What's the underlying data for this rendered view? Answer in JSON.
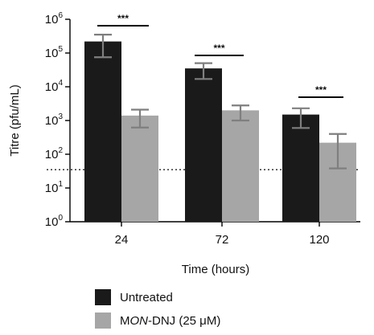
{
  "chart_data": {
    "type": "bar",
    "xlabel": "Time (hours)",
    "ylabel": "Titre (pfu/mL)",
    "categories": [
      "24",
      "72",
      "120"
    ],
    "yscale": "log10",
    "ylim": [
      1,
      1000000
    ],
    "yticks": [
      {
        "base": "10",
        "exp": "0"
      },
      {
        "base": "10",
        "exp": "1"
      },
      {
        "base": "10",
        "exp": "2"
      },
      {
        "base": "10",
        "exp": "3"
      },
      {
        "base": "10",
        "exp": "4"
      },
      {
        "base": "10",
        "exp": "5"
      },
      {
        "base": "10",
        "exp": "6"
      }
    ],
    "series": [
      {
        "name": "Untreated",
        "color": "#1a1a1a",
        "values": [
          220000,
          35000,
          1500
        ],
        "err_low": [
          75000,
          17000,
          600
        ],
        "err_high": [
          350000,
          50000,
          2300
        ]
      },
      {
        "name_prefix": "M",
        "name_italic": "ON",
        "name_suffix": "-DNJ (25 μM)",
        "color": "#a6a6a6",
        "values": [
          1400,
          2000,
          220
        ],
        "err_low": [
          620,
          1000,
          38
        ],
        "err_high": [
          2100,
          2800,
          400
        ]
      }
    ],
    "significance": [
      "***",
      "***",
      "***"
    ],
    "detection_limit": 35,
    "grid": false,
    "legend_position": "bottom"
  }
}
